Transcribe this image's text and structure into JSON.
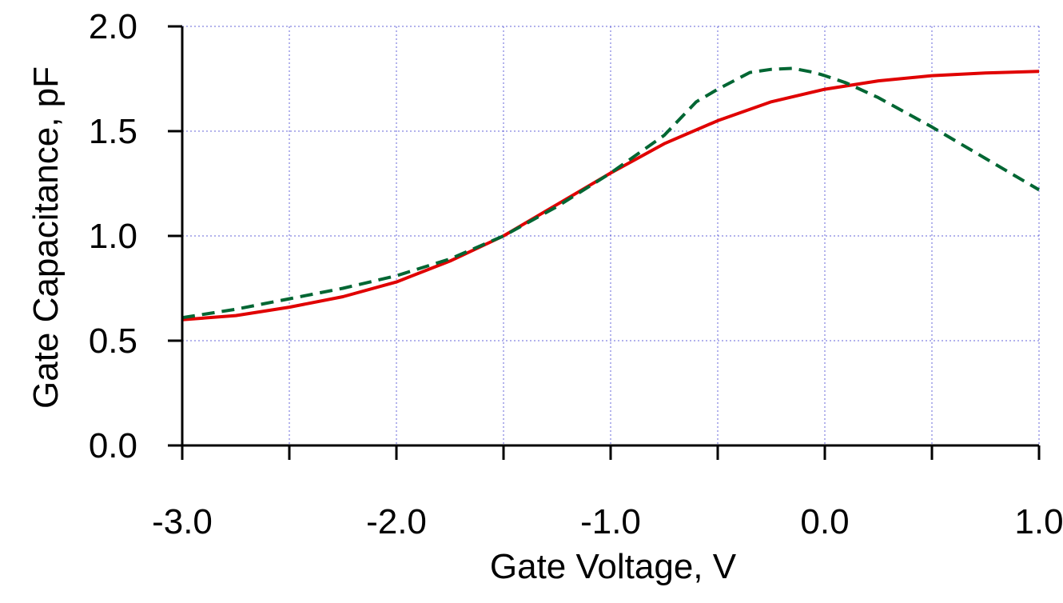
{
  "chart_data": {
    "type": "line",
    "xlabel": "Gate Voltage, V",
    "ylabel": "Gate Capacitance, pF",
    "xlim": [
      -3.0,
      1.0
    ],
    "ylim": [
      0.0,
      2.0
    ],
    "x_ticks": [
      -3.0,
      -2.0,
      -1.0,
      0.0,
      1.0
    ],
    "x_tick_labels": [
      "-3.0",
      "-2.0",
      "-1.0",
      "0.0",
      "1.0"
    ],
    "x_minor_ticks": [
      -2.5,
      -1.5,
      -0.5,
      0.5
    ],
    "y_ticks": [
      0.0,
      0.5,
      1.0,
      1.5,
      2.0
    ],
    "y_tick_labels": [
      "0.0",
      "0.5",
      "1.0",
      "1.5",
      "2.0"
    ],
    "grid": true,
    "grid_color": "#3333cc",
    "series": [
      {
        "color": "#e00000",
        "style": "solid",
        "x": [
          -3.0,
          -2.75,
          -2.5,
          -2.25,
          -2.0,
          -1.75,
          -1.5,
          -1.25,
          -1.0,
          -0.75,
          -0.5,
          -0.25,
          0.0,
          0.25,
          0.5,
          0.75,
          1.0
        ],
        "y": [
          0.6,
          0.62,
          0.66,
          0.71,
          0.78,
          0.88,
          1.0,
          1.15,
          1.3,
          1.44,
          1.55,
          1.64,
          1.7,
          1.74,
          1.765,
          1.778,
          1.785
        ]
      },
      {
        "color": "#006633",
        "style": "dashed",
        "x": [
          -3.0,
          -2.75,
          -2.5,
          -2.25,
          -2.0,
          -1.75,
          -1.5,
          -1.25,
          -1.0,
          -0.75,
          -0.6,
          -0.5,
          -0.35,
          -0.25,
          -0.15,
          -0.05,
          0.0,
          0.1,
          0.25,
          0.5,
          0.75,
          1.0
        ],
        "y": [
          0.61,
          0.65,
          0.7,
          0.75,
          0.81,
          0.89,
          1.0,
          1.14,
          1.3,
          1.48,
          1.64,
          1.7,
          1.78,
          1.795,
          1.8,
          1.78,
          1.765,
          1.73,
          1.66,
          1.52,
          1.37,
          1.22
        ]
      }
    ]
  }
}
